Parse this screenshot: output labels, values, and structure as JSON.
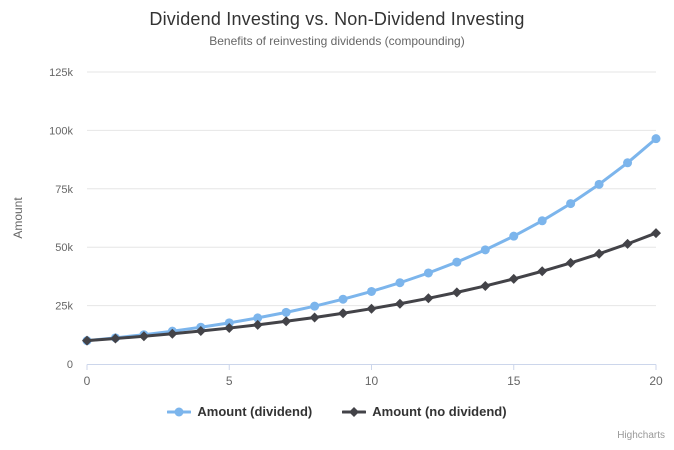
{
  "chart_data": {
    "type": "line",
    "title": "Dividend Investing vs. Non-Dividend Investing",
    "subtitle": "Benefits of reinvesting dividends (compounding)",
    "xlabel": "",
    "ylabel": "Amount",
    "xlim": [
      0,
      20
    ],
    "ylim": [
      0,
      125000
    ],
    "xticks": [
      0,
      5,
      10,
      15,
      20
    ],
    "yticks": [
      0,
      25000,
      50000,
      75000,
      100000,
      125000
    ],
    "ytick_labels": [
      "0",
      "25k",
      "50k",
      "75k",
      "100k",
      "125k"
    ],
    "grid": true,
    "legend_position": "bottom",
    "x": [
      0,
      1,
      2,
      3,
      4,
      5,
      6,
      7,
      8,
      9,
      10,
      11,
      12,
      13,
      14,
      15,
      16,
      17,
      18,
      19,
      20
    ],
    "series": [
      {
        "name": "Amount (dividend)",
        "color": "#7cb5ec",
        "marker": "circle",
        "values": [
          10000,
          11200,
          12544,
          14049,
          15735,
          17623,
          19738,
          22107,
          24761,
          27731,
          31058,
          34785,
          38960,
          43635,
          48871,
          54736,
          61304,
          68660,
          76900,
          86128,
          96463
        ]
      },
      {
        "name": "Amount (no dividend)",
        "color": "#434348",
        "marker": "diamond",
        "values": [
          10000,
          10900,
          11881,
          12950,
          14116,
          15386,
          16771,
          18280,
          19926,
          21719,
          23674,
          25804,
          28127,
          30658,
          33417,
          36425,
          39703,
          43276,
          47171,
          51417,
          56044
        ]
      }
    ]
  },
  "credits": {
    "text": "Highcharts"
  },
  "colors": {
    "background": "#ffffff",
    "grid": "#e6e6e6",
    "axis_line": "#ccd6eb",
    "title": "#333333",
    "subtitle": "#666666",
    "axis_label": "#666666",
    "legend_text": "#333333",
    "credits": "#999999"
  }
}
